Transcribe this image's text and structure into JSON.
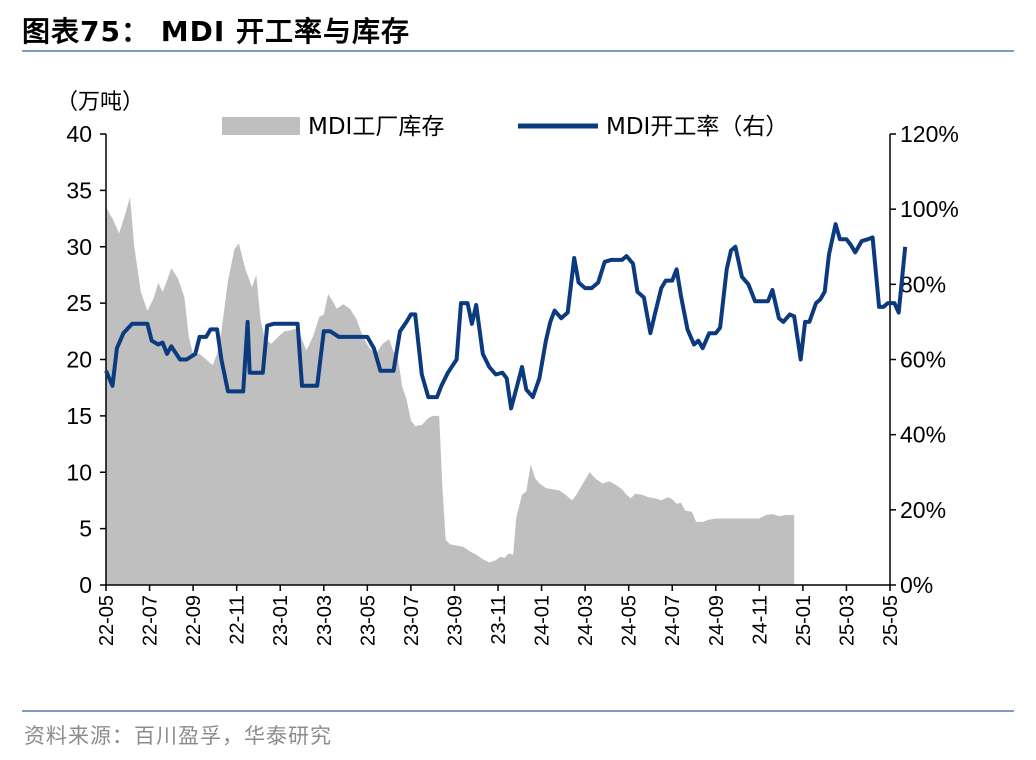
{
  "title": "图表75： MDI 开工率与库存",
  "source": "资料来源：百川盈孚，华泰研究",
  "colors": {
    "inventory": "#bfbfbf",
    "operating_rate": "#0b3a7e",
    "rule": "#7c9cc4"
  },
  "chart_data": {
    "type": "area+line",
    "title": "MDI 开工率与库存",
    "left_axis": {
      "unit_label": "（万吨）",
      "ylim": [
        0,
        40
      ],
      "ticks": [
        "0",
        "5",
        "10",
        "15",
        "20",
        "25",
        "30",
        "35",
        "40"
      ]
    },
    "right_axis": {
      "ylim": [
        0,
        120
      ],
      "ticks": [
        "0%",
        "20%",
        "40%",
        "60%",
        "80%",
        "100%",
        "120%"
      ]
    },
    "x_ticks": [
      "22-05",
      "22-07",
      "22-09",
      "22-11",
      "23-01",
      "23-03",
      "23-05",
      "23-07",
      "23-09",
      "23-11",
      "24-01",
      "24-03",
      "24-05",
      "24-07",
      "24-09",
      "24-11",
      "25-01",
      "25-03",
      "25-05"
    ],
    "legend_position": "top",
    "series": [
      {
        "name": "MDI工厂库存",
        "type": "area",
        "axis": "left",
        "points": [
          [
            0,
            33.5
          ],
          [
            0.15,
            32.5
          ],
          [
            0.3,
            31.2
          ],
          [
            0.45,
            33
          ],
          [
            0.55,
            34.4
          ],
          [
            0.65,
            30
          ],
          [
            0.8,
            26
          ],
          [
            0.95,
            24.3
          ],
          [
            1.1,
            25.5
          ],
          [
            1.2,
            26.8
          ],
          [
            1.3,
            26
          ],
          [
            1.4,
            27
          ],
          [
            1.5,
            28.1
          ],
          [
            1.65,
            27.2
          ],
          [
            1.8,
            25.5
          ],
          [
            1.9,
            22
          ],
          [
            2.0,
            20.5
          ],
          [
            2.15,
            20.5
          ],
          [
            2.3,
            20
          ],
          [
            2.45,
            19.5
          ],
          [
            2.55,
            20.5
          ],
          [
            2.65,
            22.5
          ],
          [
            2.8,
            27
          ],
          [
            2.95,
            29.8
          ],
          [
            3.05,
            30.3
          ],
          [
            3.2,
            28
          ],
          [
            3.35,
            26.4
          ],
          [
            3.45,
            27.5
          ],
          [
            3.55,
            23.5
          ],
          [
            3.65,
            21.8
          ],
          [
            3.8,
            21.4
          ],
          [
            3.95,
            22
          ],
          [
            4.1,
            22.5
          ],
          [
            4.25,
            22.6
          ],
          [
            4.4,
            22.8
          ],
          [
            4.5,
            21.8
          ],
          [
            4.6,
            20.8
          ],
          [
            4.75,
            22
          ],
          [
            4.9,
            23.8
          ],
          [
            5.0,
            24
          ],
          [
            5.1,
            25.8
          ],
          [
            5.2,
            25.2
          ],
          [
            5.3,
            24.5
          ],
          [
            5.45,
            24.9
          ],
          [
            5.6,
            24.5
          ],
          [
            5.75,
            23.6
          ],
          [
            5.9,
            22
          ],
          [
            6.05,
            21
          ],
          [
            6.2,
            20.5
          ],
          [
            6.35,
            21.4
          ],
          [
            6.5,
            21.8
          ],
          [
            6.6,
            20.7
          ],
          [
            6.7,
            20.2
          ],
          [
            6.8,
            17.6
          ],
          [
            6.9,
            16.5
          ],
          [
            7.0,
            14.6
          ],
          [
            7.1,
            14.1
          ],
          [
            7.25,
            14.2
          ],
          [
            7.4,
            14.8
          ],
          [
            7.5,
            15
          ],
          [
            7.65,
            15
          ],
          [
            7.72,
            9
          ],
          [
            7.8,
            4
          ],
          [
            7.9,
            3.6
          ],
          [
            8.05,
            3.5
          ],
          [
            8.2,
            3.4
          ],
          [
            8.35,
            3
          ],
          [
            8.5,
            2.7
          ],
          [
            8.65,
            2.3
          ],
          [
            8.8,
            2
          ],
          [
            8.95,
            2.2
          ],
          [
            9.05,
            2.5
          ],
          [
            9.15,
            2.4
          ],
          [
            9.25,
            2.8
          ],
          [
            9.35,
            2.7
          ],
          [
            9.42,
            6
          ],
          [
            9.55,
            8
          ],
          [
            9.65,
            8.3
          ],
          [
            9.75,
            10.7
          ],
          [
            9.85,
            9.5
          ],
          [
            9.95,
            9
          ],
          [
            10.1,
            8.6
          ],
          [
            10.25,
            8.5
          ],
          [
            10.4,
            8.4
          ],
          [
            10.55,
            8
          ],
          [
            10.7,
            7.5
          ],
          [
            10.8,
            8
          ],
          [
            10.95,
            9
          ],
          [
            11.1,
            10
          ],
          [
            11.25,
            9.4
          ],
          [
            11.4,
            9
          ],
          [
            11.55,
            9.2
          ],
          [
            11.7,
            8.9
          ],
          [
            11.85,
            8.5
          ],
          [
            11.95,
            8
          ],
          [
            12.05,
            7.7
          ],
          [
            12.15,
            8.1
          ],
          [
            12.3,
            8
          ],
          [
            12.45,
            7.8
          ],
          [
            12.6,
            7.7
          ],
          [
            12.75,
            7.5
          ],
          [
            12.9,
            7.8
          ],
          [
            13.0,
            7.6
          ],
          [
            13.1,
            7.2
          ],
          [
            13.2,
            7.3
          ],
          [
            13.3,
            6.6
          ],
          [
            13.45,
            6.5
          ],
          [
            13.55,
            5.6
          ],
          [
            13.7,
            5.6
          ],
          [
            13.85,
            5.8
          ],
          [
            14.0,
            5.9
          ],
          [
            14.2,
            5.9
          ],
          [
            14.4,
            5.9
          ],
          [
            14.6,
            5.9
          ],
          [
            14.8,
            5.9
          ],
          [
            15.0,
            5.9
          ],
          [
            15.15,
            6.2
          ],
          [
            15.3,
            6.3
          ],
          [
            15.45,
            6.1
          ],
          [
            15.6,
            6.2
          ],
          [
            15.75,
            6.2
          ],
          [
            15.8,
            6.2
          ]
        ]
      },
      {
        "name": "MDI开工率（右）",
        "type": "line",
        "axis": "right",
        "points": [
          [
            0,
            57
          ],
          [
            0.15,
            53
          ],
          [
            0.25,
            63
          ],
          [
            0.4,
            67
          ],
          [
            0.6,
            69.5
          ],
          [
            0.8,
            69.5
          ],
          [
            0.95,
            69.5
          ],
          [
            1.05,
            65
          ],
          [
            1.2,
            64
          ],
          [
            1.3,
            64.5
          ],
          [
            1.4,
            61.5
          ],
          [
            1.5,
            63.5
          ],
          [
            1.7,
            60
          ],
          [
            1.85,
            60
          ],
          [
            2.05,
            61.5
          ],
          [
            2.15,
            66
          ],
          [
            2.3,
            66
          ],
          [
            2.4,
            68
          ],
          [
            2.55,
            68
          ],
          [
            2.65,
            60
          ],
          [
            2.8,
            51.5
          ],
          [
            3.0,
            51.5
          ],
          [
            3.15,
            51.5
          ],
          [
            3.25,
            70
          ],
          [
            3.3,
            56.5
          ],
          [
            3.45,
            56.5
          ],
          [
            3.6,
            56.5
          ],
          [
            3.7,
            69
          ],
          [
            3.85,
            69.5
          ],
          [
            4.0,
            69.5
          ],
          [
            4.15,
            69.5
          ],
          [
            4.25,
            69.5
          ],
          [
            4.4,
            69.5
          ],
          [
            4.5,
            53
          ],
          [
            4.65,
            53
          ],
          [
            4.85,
            53
          ],
          [
            5.0,
            67.5
          ],
          [
            5.15,
            67.5
          ],
          [
            5.35,
            66
          ],
          [
            5.6,
            66
          ],
          [
            5.8,
            66
          ],
          [
            6.0,
            66
          ],
          [
            6.15,
            63
          ],
          [
            6.3,
            57
          ],
          [
            6.45,
            57
          ],
          [
            6.6,
            57
          ],
          [
            6.75,
            67.5
          ],
          [
            6.9,
            70
          ],
          [
            7.0,
            72
          ],
          [
            7.1,
            72
          ],
          [
            7.25,
            56
          ],
          [
            7.4,
            50
          ],
          [
            7.5,
            50
          ],
          [
            7.6,
            50
          ],
          [
            7.7,
            53
          ],
          [
            7.85,
            56.5
          ],
          [
            8.05,
            60
          ],
          [
            8.15,
            75
          ],
          [
            8.3,
            75
          ],
          [
            8.4,
            69.5
          ],
          [
            8.5,
            74.5
          ],
          [
            8.65,
            61.5
          ],
          [
            8.8,
            58
          ],
          [
            8.95,
            56
          ],
          [
            9.1,
            56.5
          ],
          [
            9.2,
            55
          ],
          [
            9.3,
            47
          ],
          [
            9.45,
            53.5
          ],
          [
            9.55,
            58
          ],
          [
            9.65,
            52
          ],
          [
            9.8,
            50
          ],
          [
            9.95,
            55
          ],
          [
            10.1,
            65
          ],
          [
            10.2,
            70
          ],
          [
            10.3,
            73
          ],
          [
            10.45,
            71
          ],
          [
            10.6,
            72.5
          ],
          [
            10.75,
            87
          ],
          [
            10.85,
            80.5
          ],
          [
            11.0,
            79
          ],
          [
            11.15,
            79
          ],
          [
            11.3,
            80.5
          ],
          [
            11.45,
            86
          ],
          [
            11.6,
            86.5
          ],
          [
            11.75,
            86.5
          ],
          [
            11.85,
            86.5
          ],
          [
            11.95,
            87.5
          ],
          [
            12.1,
            85.5
          ],
          [
            12.2,
            78
          ],
          [
            12.35,
            76.5
          ],
          [
            12.5,
            67
          ],
          [
            12.6,
            72
          ],
          [
            12.75,
            79
          ],
          [
            12.85,
            81
          ],
          [
            13.0,
            81
          ],
          [
            13.1,
            84
          ],
          [
            13.2,
            77
          ],
          [
            13.35,
            68
          ],
          [
            13.5,
            64
          ],
          [
            13.6,
            65
          ],
          [
            13.7,
            63
          ],
          [
            13.85,
            67
          ],
          [
            14.0,
            67
          ],
          [
            14.1,
            68.5
          ],
          [
            14.25,
            84
          ],
          [
            14.35,
            89
          ],
          [
            14.45,
            90
          ],
          [
            14.6,
            82
          ],
          [
            14.75,
            80
          ],
          [
            14.9,
            75.5
          ],
          [
            15.05,
            75.5
          ],
          [
            15.2,
            75.5
          ],
          [
            15.3,
            78.5
          ],
          [
            15.45,
            71
          ],
          [
            15.55,
            70
          ],
          [
            15.7,
            72
          ],
          [
            15.8,
            71.5
          ],
          [
            15.95,
            60
          ],
          [
            16.05,
            70
          ],
          [
            16.15,
            70
          ],
          [
            16.3,
            75
          ],
          [
            16.4,
            76
          ],
          [
            16.5,
            78
          ],
          [
            16.6,
            88
          ],
          [
            16.75,
            96
          ],
          [
            16.85,
            92
          ],
          [
            17.0,
            92
          ],
          [
            17.1,
            90.5
          ],
          [
            17.2,
            88.5
          ],
          [
            17.35,
            91.5
          ],
          [
            17.5,
            92
          ],
          [
            17.6,
            92.5
          ],
          [
            17.75,
            74
          ],
          [
            17.85,
            74
          ],
          [
            17.95,
            75
          ],
          [
            18.1,
            75
          ],
          [
            18.2,
            72.5
          ],
          [
            18.35,
            90
          ]
        ]
      }
    ]
  }
}
